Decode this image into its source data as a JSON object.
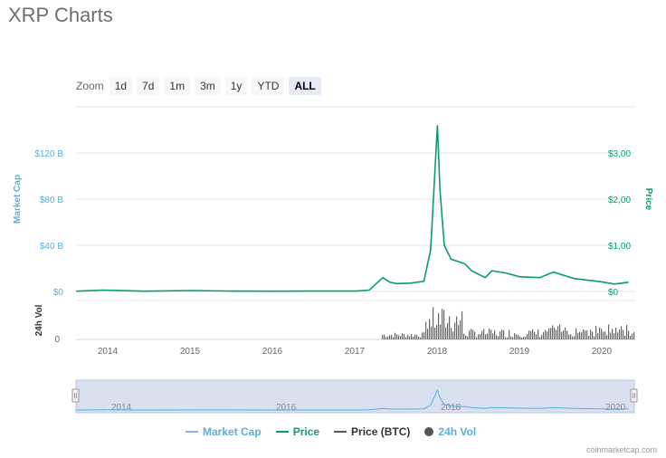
{
  "page": {
    "title": "XRP Charts"
  },
  "zoom": {
    "label": "Zoom",
    "buttons": [
      "1d",
      "7d",
      "1m",
      "3m",
      "1y",
      "YTD",
      "ALL"
    ],
    "selected": "ALL"
  },
  "axes": {
    "left_title": "Market Cap",
    "right_title": "Price",
    "volume_title": "24h Vol",
    "left_ticks": [
      "$0",
      "$40 B",
      "$80 B",
      "$120 B"
    ],
    "right_ticks": [
      "$0",
      "$1,00",
      "$2,00",
      "$3,00"
    ],
    "volume_tick": "0",
    "x_ticks": [
      "2014",
      "2015",
      "2016",
      "2017",
      "2018",
      "2019",
      "2020"
    ]
  },
  "navigator": {
    "labels": [
      "2014",
      "2016",
      "2018",
      "2020"
    ]
  },
  "legend": [
    {
      "label": "Market Cap",
      "color": "#7cb5ec",
      "kind": "line"
    },
    {
      "label": "Price",
      "color": "#0a9b72",
      "kind": "line"
    },
    {
      "label": "Price (BTC)",
      "color": "#555555",
      "kind": "line"
    },
    {
      "label": "24h Vol",
      "color": "#555555",
      "kind": "dot"
    }
  ],
  "credit": "coinmarketcap.com",
  "colors": {
    "market_cap": "#5aaed8",
    "price": "#0a9b72",
    "volume": "#666666",
    "navigator_fill": "#ccd6eb",
    "grid": "#e6e6e6"
  },
  "chart_data": {
    "type": "line",
    "title": "",
    "xlabel": "",
    "x_range": [
      "2013-08",
      "2020-05"
    ],
    "series": [
      {
        "name": "Price",
        "axis": "right",
        "x": [
          "2013-08",
          "2013-12",
          "2014-06",
          "2015-01",
          "2015-06",
          "2016-01",
          "2016-06",
          "2017-01",
          "2017-03",
          "2017-05",
          "2017-06",
          "2017-07",
          "2017-09",
          "2017-11",
          "2017-12",
          "2018-01",
          "2018-01",
          "2018-02",
          "2018-03",
          "2018-05",
          "2018-06",
          "2018-08",
          "2018-09",
          "2018-11",
          "2019-01",
          "2019-04",
          "2019-06",
          "2019-09",
          "2020-01",
          "2020-03",
          "2020-05"
        ],
        "values": [
          0.005,
          0.03,
          0.005,
          0.02,
          0.01,
          0.006,
          0.007,
          0.007,
          0.03,
          0.3,
          0.2,
          0.17,
          0.18,
          0.22,
          0.9,
          3.6,
          2.2,
          1.0,
          0.7,
          0.6,
          0.45,
          0.3,
          0.45,
          0.4,
          0.32,
          0.3,
          0.42,
          0.28,
          0.21,
          0.16,
          0.2
        ]
      },
      {
        "name": "Market Cap",
        "axis": "left",
        "unit": "B",
        "x": [
          "2013-08",
          "2017-03",
          "2017-05",
          "2017-12",
          "2018-01",
          "2018-03",
          "2018-09",
          "2019-06",
          "2020-05"
        ],
        "values": [
          0.1,
          0.5,
          10,
          35,
          130,
          30,
          17,
          18,
          8.5
        ]
      },
      {
        "name": "24h Vol",
        "kind": "bars"
      }
    ]
  }
}
